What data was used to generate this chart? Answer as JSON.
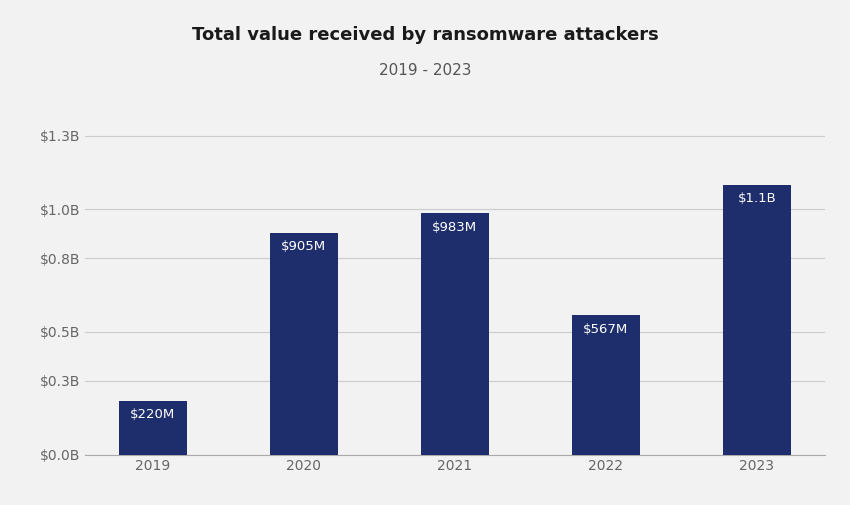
{
  "title": "Total value received by ransomware attackers",
  "subtitle": "2019 - 2023",
  "categories": [
    "2019",
    "2020",
    "2021",
    "2022",
    "2023"
  ],
  "values": [
    0.22,
    0.905,
    0.983,
    0.567,
    1.1
  ],
  "labels": [
    "$220M",
    "$905M",
    "$983M",
    "$567M",
    "$1.1B"
  ],
  "bar_color": "#1e2d6b",
  "label_color": "#ffffff",
  "background_color": "#f2f2f2",
  "yticks": [
    0.0,
    0.3,
    0.5,
    0.8,
    1.0,
    1.3
  ],
  "ytick_labels": [
    "$0.0B",
    "$0.3B",
    "$0.5B",
    "$0.8B",
    "$1.0B",
    "$1.3B"
  ],
  "ylim": [
    0,
    1.4
  ],
  "title_fontsize": 13,
  "subtitle_fontsize": 11,
  "bar_width": 0.45
}
